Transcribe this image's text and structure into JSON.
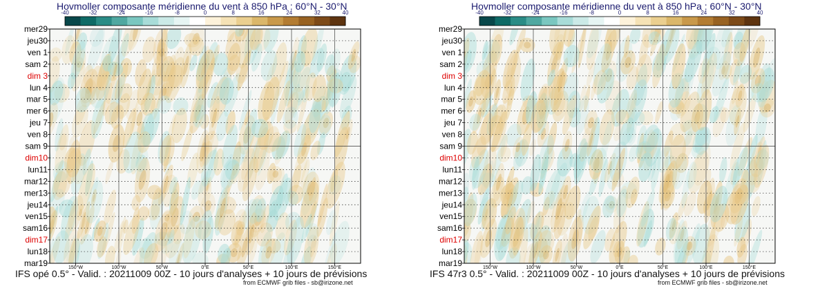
{
  "colors": {
    "negative": "#a8dcd8",
    "positive": "#e8c98a",
    "weekend": "#dd0000",
    "title": "#1a1a6e"
  },
  "colorbar": {
    "ticks": [
      "-40",
      "-32",
      "-24",
      "-16",
      "-8",
      "0",
      "8",
      "16",
      "24",
      "32",
      "40"
    ],
    "colors": [
      "#08474a",
      "#0e6a66",
      "#2a8c86",
      "#4fa8a1",
      "#7ac7c0",
      "#a8dcd8",
      "#cbeae7",
      "#e6f5f3",
      "#ffffff",
      "#fdf2da",
      "#f5e2b5",
      "#ebcf8f",
      "#dbb76a",
      "#c9994a",
      "#b37c32",
      "#986222",
      "#7d4a18",
      "#5e3410"
    ]
  },
  "panels": [
    {
      "title": "Hovmoller composante méridienne du vent à 850 hPa : 60°N - 30°N",
      "footer": "IFS opé 0.5° - Valid. : 20211009 00Z - 10 jours d'analyses + 10 jours de prévisions",
      "credit": "from ECMWF grib files - sb@irizone.net"
    },
    {
      "title": "Hovmoller composante méridienne du vent à 850 hPa : 60°N - 30°N",
      "footer": "IFS 47r3 0.5° - Valid. : 20211009 00Z - 10 jours d'analyses + 10 jours de prévisions",
      "credit": "from ECMWF grib files - sb@irizone.net"
    }
  ],
  "chart_data": {
    "type": "heatmap",
    "title": "Hovmoller composante méridienne du vent à 850 hPa : 60°N - 30°N",
    "x_ticks": [
      "150°W",
      "100°W",
      "50°W",
      "0°E",
      "50°E",
      "100°E",
      "150°E"
    ],
    "x_tick_values": [
      -150,
      -100,
      -50,
      0,
      50,
      100,
      150
    ],
    "xlim": [
      -180,
      180
    ],
    "y_labels": [
      "mer29",
      "jeu30",
      "ven 1",
      "sam 2",
      "dim 3",
      "lun 4",
      "mar 5",
      "mer 6",
      "jeu 7",
      "ven 8",
      "sam 9",
      "dim10",
      "lun11",
      "mar12",
      "mer13",
      "jeu14",
      "ven15",
      "sam16",
      "dim17",
      "lun18",
      "mar19"
    ],
    "weekend_days": [
      "dim 3",
      "dim10",
      "dim17"
    ],
    "analysis_end": "sam 9",
    "colorbar_range": [
      -40,
      40
    ],
    "colorbar_step": 4
  }
}
